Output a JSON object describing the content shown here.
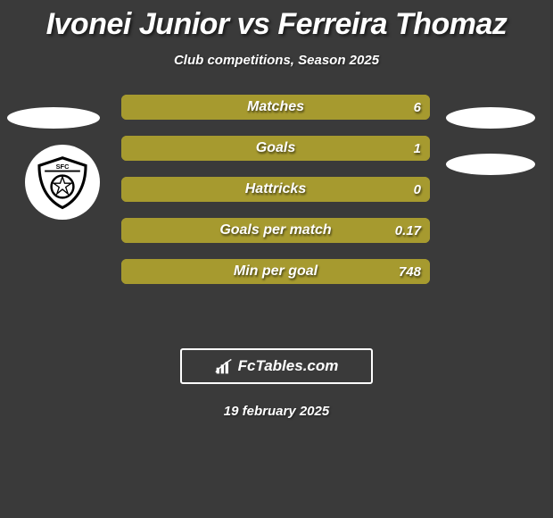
{
  "title": "Ivonei Junior vs Ferreira Thomaz",
  "subtitle": "Club competitions, Season 2025",
  "date": "19 february 2025",
  "logo_text": "FcTables.com",
  "colors": {
    "background": "#3a3a3a",
    "bar_fill": "#a69a2f",
    "bar_outline": "#a69a2f",
    "text": "#ffffff"
  },
  "bars": [
    {
      "label": "Matches",
      "value": "6",
      "fill_from_right_pct": 100
    },
    {
      "label": "Goals",
      "value": "1",
      "fill_from_right_pct": 100
    },
    {
      "label": "Hattricks",
      "value": "0",
      "fill_from_right_pct": 100
    },
    {
      "label": "Goals per match",
      "value": "0.17",
      "fill_from_right_pct": 100
    },
    {
      "label": "Min per goal",
      "value": "748",
      "fill_from_right_pct": 100
    }
  ]
}
